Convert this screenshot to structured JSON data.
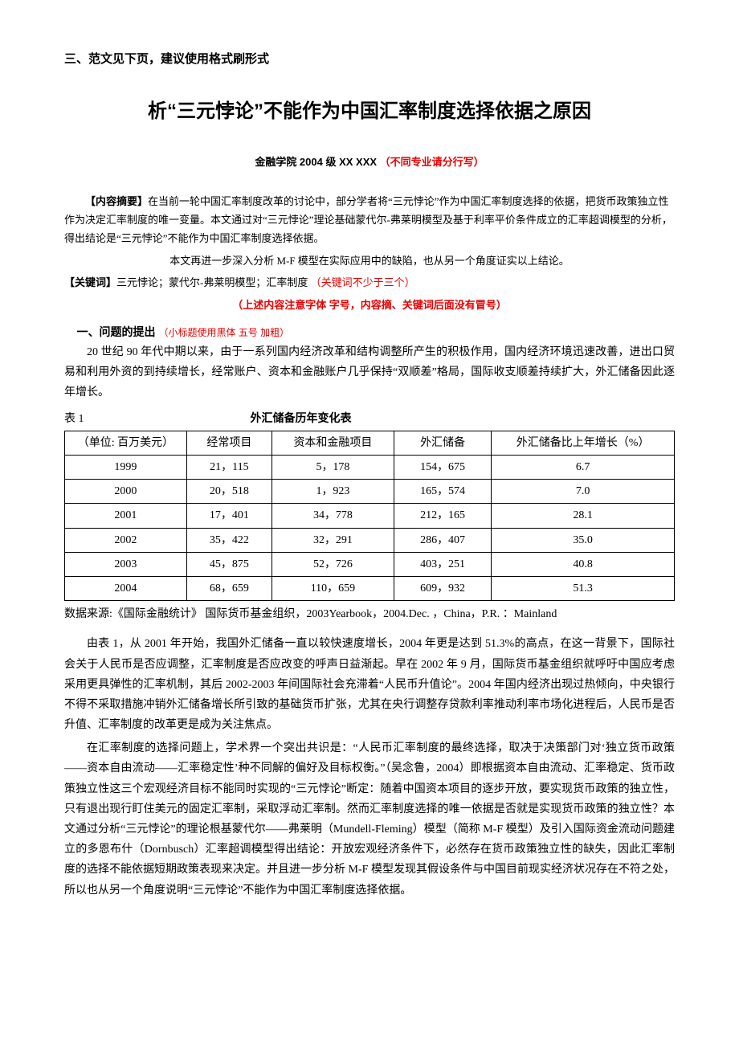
{
  "top_note": "三、范文见下页，建议使用格式刷形式",
  "title": "析“三元悖论”不能作为中国汇率制度选择依据之原因",
  "author_prefix": "金融学院 2004 级 XX  XXX",
  "author_hint": "（不同专业请分行写）",
  "abstract_label": "【内容摘要】",
  "abstract_text": "在当前一轮中国汇率制度改革的讨论中，部分学者将“三元悖论”作为中国汇率制度选择的依据，把货币政策独立性作为决定汇率制度的唯一变量。本文通过对“三元悖论”理论基础蒙代尔-弗莱明模型及基于利率平价条件成立的汇率超调模型的分析，得出结论是“三元悖论”不能作为中国汇率制度选择依据。",
  "abstract_tail": "本文再进一步深入分析 M-F 模型在实际应用中的缺陷，也从另一个角度证实以上结论。",
  "keywords_label": "【关键词】",
  "keywords_text": "三元悖论；蒙代尔-弗莱明模型；汇率制度",
  "keywords_hint": "（关键词不少于三个）",
  "format_hint": "（上述内容注意字体 字号，内容摘、关键词后面没有冒号）",
  "section1_title": "一、问题的提出",
  "section1_hint": "（小标题使用黑体 五号 加粗）",
  "para1": "20 世纪 90 年代中期以来，由于一系列国内经济改革和结构调整所产生的积极作用，国内经济环境迅速改善，进出口贸易和利用外资的到持续增长，经常账户、资本和金融账户几乎保持“双顺差”格局，国际收支顺差持续扩大，外汇储备因此逐年增长。",
  "table_no": "表 1",
  "table_title": "外汇储备历年变化表",
  "table": {
    "columns": [
      "（单位: 百万美元）",
      "经常项目",
      "资本和金融项目",
      "外汇储备",
      "外汇储备比上年增长（%）"
    ],
    "rows": [
      [
        "1999",
        "21，115",
        "5，178",
        "154，675",
        "6.7"
      ],
      [
        "2000",
        "20，518",
        "1，923",
        "165，574",
        "7.0"
      ],
      [
        "2001",
        "17，401",
        "34，778",
        "212，165",
        "28.1"
      ],
      [
        "2002",
        "35，422",
        "32，291",
        "286，407",
        "35.0"
      ],
      [
        "2003",
        "45，875",
        "52，726",
        "403，251",
        "40.8"
      ],
      [
        "2004",
        "68，659",
        "110，659",
        "609，932",
        "51.3"
      ]
    ],
    "col_widths": [
      "20%",
      "14%",
      "20%",
      "16%",
      "30%"
    ]
  },
  "source": "数据来源:《国际金融统计》 国际货币基金组织，2003Yearbook，2004.Dec. ，China，P.R. ：Mainland",
  "para2": "由表 1，从 2001 年开始，我国外汇储备一直以较快速度增长，2004 年更是达到 51.3%的高点，在这一背景下，国际社会关于人民币是否应调整，汇率制度是否应改变的呼声日益渐起。早在 2002 年 9 月，国际货币基金组织就呼吁中国应考虑采用更具弹性的汇率机制，其后 2002-2003 年间国际社会充滞着“人民币升值论”。2004 年国内经济出现过热倾向，中央银行不得不采取措施冲销外汇储备增长所引致的基础货币扩张，尤其在央行调整存贷款利率推动利率市场化进程后，人民币是否升值、汇率制度的改革更是成为关注焦点。",
  "para3": "在汇率制度的选择问题上，学术界一个突出共识是：“人民币汇率制度的最终选择，取决于决策部门对‘独立货币政策——资本自由流动——汇率稳定性’种不同解的偏好及目标权衡。”（吴念鲁，2004）即根据资本自由流动、汇率稳定、货币政策独立性这三个宏观经济目标不能同时实现的“三元悖论”断定：随着中国资本项目的逐步开放，要实现货币政策的独立性，只有退出现行盯住美元的固定汇率制，采取浮动汇率制。然而汇率制度选择的唯一依据是否就是实现货币政策的独立性？本文通过分析“三元悖论”的理论根基蒙代尔——弗莱明（Mundell-Fleming）模型（简称 M-F 模型）及引入国际资金流动问题建立的多恩布什（Dornbusch）汇率超调模型得出结论：开放宏观经济条件下，必然存在货币政策独立性的缺失，因此汇率制度的选择不能依据短期政策表现来决定。并且进一步分析 M-F 模型发现其假设条件与中国目前现实经济状况存在不符之处，所以也从另一个角度说明“三元悖论”不能作为中国汇率制度选择依据。"
}
